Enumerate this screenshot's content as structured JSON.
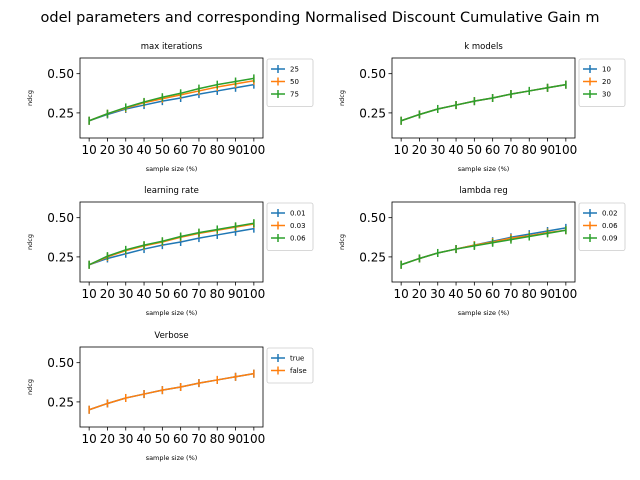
{
  "figure_title": "odel parameters and corresponding Normalised Discount Cumulative Gain m",
  "colors": {
    "blue": "#1f77b4",
    "orange": "#ff7f0e",
    "green": "#2ca02c"
  },
  "chart_data": [
    {
      "type": "line",
      "title": "max iterations",
      "xlabel": "sample size (%)",
      "ylabel": "ndcg",
      "x": [
        10,
        20,
        30,
        40,
        50,
        60,
        70,
        80,
        90,
        100
      ],
      "ylim": [
        0.09,
        0.6
      ],
      "yticks": [
        0.25,
        0.5
      ],
      "legend": "outside-right",
      "series": [
        {
          "name": "25",
          "color": "#1f77b4",
          "values": [
            0.2,
            0.24,
            0.275,
            0.3,
            0.325,
            0.345,
            0.37,
            0.39,
            0.41,
            0.43
          ]
        },
        {
          "name": "50",
          "color": "#ff7f0e",
          "values": [
            0.2,
            0.245,
            0.28,
            0.315,
            0.34,
            0.365,
            0.39,
            0.415,
            0.435,
            0.455
          ]
        },
        {
          "name": "75",
          "color": "#2ca02c",
          "values": [
            0.2,
            0.245,
            0.285,
            0.32,
            0.35,
            0.375,
            0.405,
            0.43,
            0.45,
            0.47
          ]
        }
      ]
    },
    {
      "type": "line",
      "title": "k models",
      "xlabel": "sample size (%)",
      "ylabel": "ndcg",
      "x": [
        10,
        20,
        30,
        40,
        50,
        60,
        70,
        80,
        90,
        100
      ],
      "ylim": [
        0.09,
        0.6
      ],
      "yticks": [
        0.25,
        0.5
      ],
      "legend": "outside-right",
      "series": [
        {
          "name": "10",
          "color": "#1f77b4",
          "values": [
            0.2,
            0.24,
            0.275,
            0.3,
            0.325,
            0.345,
            0.37,
            0.39,
            0.41,
            0.43
          ]
        },
        {
          "name": "20",
          "color": "#ff7f0e",
          "values": [
            0.2,
            0.24,
            0.275,
            0.3,
            0.325,
            0.345,
            0.37,
            0.39,
            0.41,
            0.43
          ]
        },
        {
          "name": "30",
          "color": "#2ca02c",
          "values": [
            0.2,
            0.24,
            0.275,
            0.3,
            0.325,
            0.345,
            0.37,
            0.39,
            0.41,
            0.43
          ]
        }
      ]
    },
    {
      "type": "line",
      "title": "learning rate",
      "xlabel": "sample size (%)",
      "ylabel": "ndcg",
      "x": [
        10,
        20,
        30,
        40,
        50,
        60,
        70,
        80,
        90,
        100
      ],
      "ylim": [
        0.09,
        0.6
      ],
      "yticks": [
        0.25,
        0.5
      ],
      "legend": "outside-right",
      "series": [
        {
          "name": "0.01",
          "color": "#1f77b4",
          "values": [
            0.2,
            0.24,
            0.27,
            0.3,
            0.325,
            0.345,
            0.37,
            0.39,
            0.41,
            0.43
          ]
        },
        {
          "name": "0.03",
          "color": "#ff7f0e",
          "values": [
            0.2,
            0.25,
            0.29,
            0.32,
            0.345,
            0.375,
            0.4,
            0.42,
            0.44,
            0.46
          ]
        },
        {
          "name": "0.06",
          "color": "#2ca02c",
          "values": [
            0.2,
            0.255,
            0.295,
            0.325,
            0.35,
            0.38,
            0.405,
            0.425,
            0.445,
            0.465
          ]
        }
      ]
    },
    {
      "type": "line",
      "title": "lambda reg",
      "xlabel": "sample size (%)",
      "ylabel": "ndcg",
      "x": [
        10,
        20,
        30,
        40,
        50,
        60,
        70,
        80,
        90,
        100
      ],
      "ylim": [
        0.09,
        0.6
      ],
      "yticks": [
        0.25,
        0.5
      ],
      "legend": "outside-right",
      "series": [
        {
          "name": "0.02",
          "color": "#1f77b4",
          "values": [
            0.2,
            0.24,
            0.275,
            0.3,
            0.325,
            0.35,
            0.375,
            0.395,
            0.415,
            0.435
          ]
        },
        {
          "name": "0.06",
          "color": "#ff7f0e",
          "values": [
            0.2,
            0.24,
            0.275,
            0.3,
            0.325,
            0.345,
            0.37,
            0.385,
            0.405,
            0.42
          ]
        },
        {
          "name": "0.09",
          "color": "#2ca02c",
          "values": [
            0.2,
            0.24,
            0.275,
            0.3,
            0.32,
            0.34,
            0.36,
            0.38,
            0.4,
            0.42
          ]
        }
      ]
    },
    {
      "type": "line",
      "title": "Verbose",
      "xlabel": "sample size (%)",
      "ylabel": "ndcg",
      "x": [
        10,
        20,
        30,
        40,
        50,
        60,
        70,
        80,
        90,
        100
      ],
      "ylim": [
        0.09,
        0.6
      ],
      "yticks": [
        0.25,
        0.5
      ],
      "legend": "outside-right",
      "series": [
        {
          "name": "true",
          "color": "#1f77b4",
          "values": [
            0.2,
            0.24,
            0.275,
            0.3,
            0.325,
            0.345,
            0.37,
            0.39,
            0.41,
            0.43
          ]
        },
        {
          "name": "false",
          "color": "#ff7f0e",
          "values": [
            0.2,
            0.24,
            0.275,
            0.3,
            0.325,
            0.345,
            0.37,
            0.39,
            0.41,
            0.43
          ]
        }
      ]
    }
  ]
}
